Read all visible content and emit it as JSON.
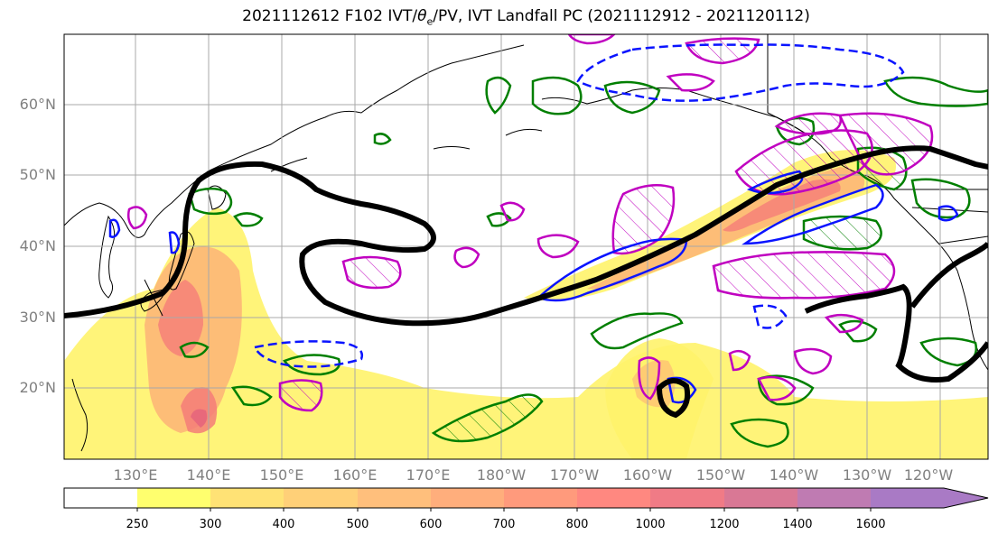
{
  "title": {
    "prefix": "2021112612 F102 IVT/",
    "theta": "θ",
    "theta_sub": "e",
    "suffix": "/PV, IVT Landfall PC (2021112912 - 2021120112)"
  },
  "map": {
    "lat_labels": [
      "60°N",
      "50°N",
      "40°N",
      "30°N",
      "20°N"
    ],
    "lon_labels": [
      "130°E",
      "140°E",
      "150°E",
      "160°E",
      "170°E",
      "180°W",
      "170°W",
      "160°W",
      "150°W",
      "140°W",
      "130°W",
      "120°W"
    ],
    "fill_colors": {
      "ivt_low": "#fff36a",
      "ivt_mid": "#fdb377",
      "ivt_high": "#f57d78",
      "ivt_peak": "#e8697b"
    },
    "contour_colors": {
      "black": "#000000",
      "blue": "#0a14ff",
      "magenta": "#c000c0",
      "green": "#007f00"
    }
  },
  "colorbar": {
    "ticks": [
      "250",
      "300",
      "400",
      "500",
      "600",
      "700",
      "800",
      "1000",
      "1200",
      "1400",
      "1600"
    ],
    "colors": [
      "#ffffff",
      "#ffff6e",
      "#ffe275",
      "#ffd078",
      "#ffbf7c",
      "#ffae7c",
      "#ff9a7c",
      "#ff8880",
      "#f07b86",
      "#d97895",
      "#bf7bb2",
      "#a97ac5"
    ]
  }
}
